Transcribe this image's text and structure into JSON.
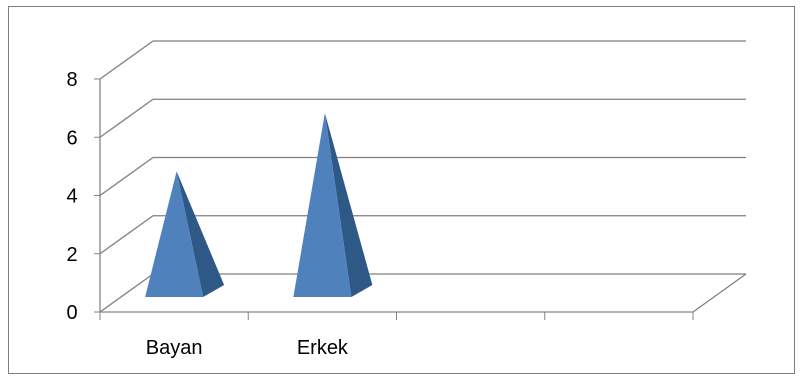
{
  "chart_data": {
    "type": "bar",
    "style": "3d-pyramid",
    "title": "",
    "xlabel": "",
    "ylabel": "",
    "categories": [
      "Bayan",
      "Erkek",
      "",
      ""
    ],
    "values": [
      5,
      7,
      null,
      null
    ],
    "ylim": [
      0,
      8
    ],
    "yticks": [
      "0",
      "2",
      "4",
      "6",
      "8"
    ],
    "grid": true,
    "legend": "none",
    "colors": {
      "front_face": "#4F81BD",
      "side_face": "#2E5886",
      "gridline": "#7F7F7F",
      "axis": "#868686",
      "border": "#7F7F7F"
    }
  }
}
